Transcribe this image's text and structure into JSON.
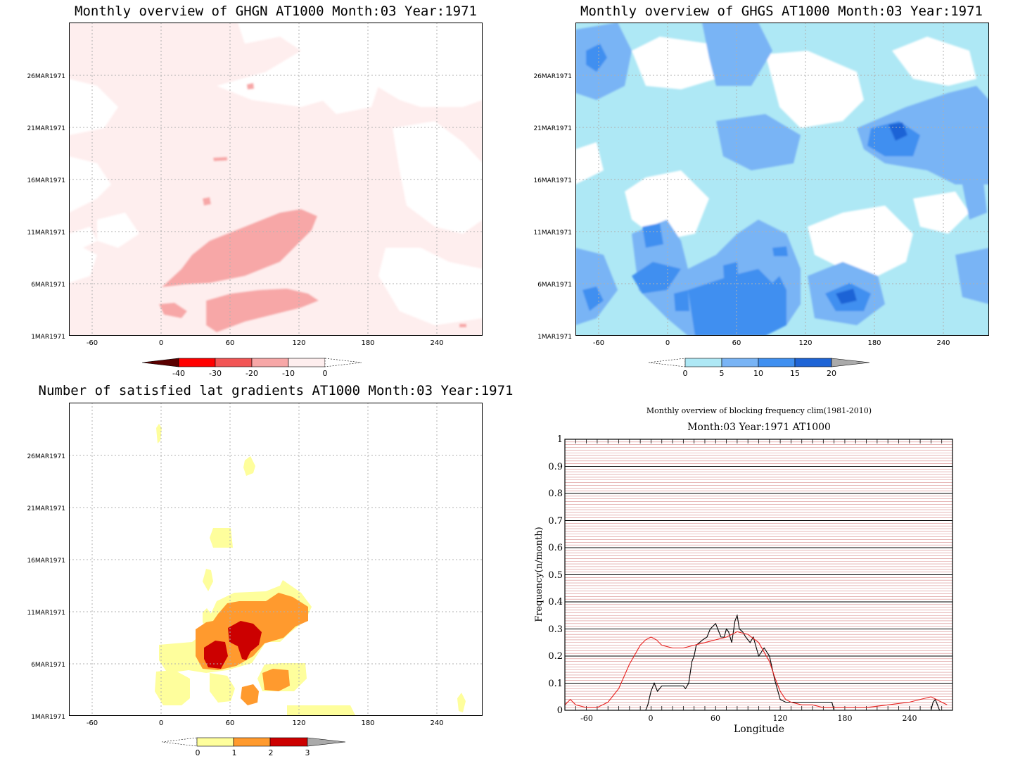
{
  "panels": {
    "ghgn": {
      "title": "Monthly overview of GHGN AT1000 Month:03 Year:1971",
      "y_ticks": [
        "1MAR1971",
        "6MAR1971",
        "11MAR1971",
        "16MAR1971",
        "21MAR1971",
        "26MAR1971"
      ],
      "x_ticks": [
        "-60",
        "0",
        "60",
        "120",
        "180",
        "240"
      ],
      "colorbar": {
        "labels": [
          "-40",
          "-30",
          "-20",
          "-10",
          "0"
        ],
        "colors": [
          "#5a0000",
          "#ff0000",
          "#f25555",
          "#f7a7a7",
          "#feeeee"
        ]
      }
    },
    "ghgs": {
      "title": "Monthly overview of GHGS AT1000 Month:03 Year:1971",
      "y_ticks": [
        "1MAR1971",
        "6MAR1971",
        "11MAR1971",
        "16MAR1971",
        "21MAR1971",
        "26MAR1971"
      ],
      "x_ticks": [
        "-60",
        "0",
        "60",
        "120",
        "180",
        "240"
      ],
      "colorbar": {
        "labels": [
          "0",
          "5",
          "10",
          "15",
          "20"
        ],
        "colors": [
          "#aee8f5",
          "#79b4f5",
          "#3f8ff0",
          "#1e64d6",
          "#aaaaaa"
        ]
      }
    },
    "sat": {
      "title": "Number of satisfied lat gradients AT1000 Month:03 Year:1971",
      "y_ticks": [
        "1MAR1971",
        "6MAR1971",
        "11MAR1971",
        "16MAR1971",
        "21MAR1971",
        "26MAR1971"
      ],
      "x_ticks": [
        "-60",
        "0",
        "60",
        "120",
        "180",
        "240"
      ],
      "colorbar": {
        "labels": [
          "0",
          "1",
          "2",
          "3"
        ],
        "colors": [
          "#fefe9c",
          "#ff9a2e",
          "#cc0000",
          "#aaaaaa"
        ]
      }
    },
    "freq": {
      "title": "Monthly overview of blocking frequency clim(1981-2010)",
      "subtitle": "Month:03 Year:1971  AT1000",
      "ylabel": "Frequency(n/month)",
      "xlabel": "Longitude",
      "y_ticks": [
        "0",
        "0.1",
        "0.2",
        "0.3",
        "0.4",
        "0.5",
        "0.6",
        "0.7",
        "0.8",
        "0.9",
        "1"
      ],
      "x_ticks": [
        "-60",
        "0",
        "60",
        "120",
        "180",
        "240"
      ]
    }
  },
  "chart_data": {
    "type": "line",
    "title": "Monthly overview of blocking frequency clim(1981-2010)",
    "subtitle": "Month:03 Year:1971  AT1000",
    "xlabel": "Longitude",
    "ylabel": "Frequency(n/month)",
    "xlim": [
      -80,
      280
    ],
    "ylim": [
      0,
      1
    ],
    "grid": true,
    "series": [
      {
        "color": "#000000",
        "x": [
          -80,
          -5,
          -3,
          0,
          3,
          6,
          10,
          30,
          32,
          35,
          38,
          40,
          42,
          45,
          48,
          52,
          55,
          60,
          62,
          65,
          68,
          70,
          72,
          75,
          78,
          80,
          82,
          85,
          88,
          92,
          95,
          100,
          105,
          110,
          115,
          120,
          125,
          130,
          150,
          168,
          170,
          175,
          180,
          200,
          220,
          240,
          255,
          260,
          262,
          264,
          266,
          268,
          280
        ],
        "y": [
          0,
          0,
          0.02,
          0.07,
          0.1,
          0.07,
          0.09,
          0.09,
          0.08,
          0.1,
          0.18,
          0.2,
          0.24,
          0.25,
          0.26,
          0.27,
          0.3,
          0.32,
          0.3,
          0.27,
          0.27,
          0.3,
          0.29,
          0.25,
          0.33,
          0.35,
          0.3,
          0.29,
          0.27,
          0.25,
          0.27,
          0.2,
          0.23,
          0.2,
          0.11,
          0.04,
          0.03,
          0.03,
          0.03,
          0.03,
          0,
          0,
          0,
          0,
          0,
          0,
          0,
          0,
          0.03,
          0.04,
          0.02,
          0,
          0
        ]
      },
      {
        "color": "#e8201e",
        "x": [
          -80,
          -75,
          -70,
          -60,
          -50,
          -40,
          -30,
          -20,
          -10,
          -5,
          0,
          5,
          10,
          20,
          30,
          40,
          50,
          60,
          70,
          80,
          90,
          100,
          110,
          115,
          120,
          125,
          130,
          140,
          150,
          160,
          180,
          200,
          220,
          240,
          250,
          260,
          265,
          270,
          275
        ],
        "y": [
          0.02,
          0.04,
          0.02,
          0.01,
          0.01,
          0.03,
          0.08,
          0.17,
          0.24,
          0.26,
          0.27,
          0.26,
          0.24,
          0.23,
          0.23,
          0.24,
          0.25,
          0.26,
          0.27,
          0.29,
          0.28,
          0.25,
          0.18,
          0.12,
          0.07,
          0.04,
          0.03,
          0.02,
          0.02,
          0.01,
          0.01,
          0.01,
          0.02,
          0.03,
          0.04,
          0.05,
          0.04,
          0.03,
          0.02
        ]
      }
    ]
  }
}
